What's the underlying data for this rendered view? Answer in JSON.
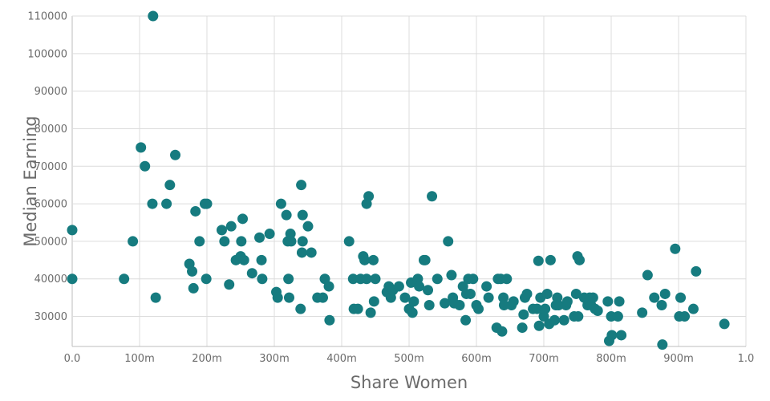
{
  "chart_data": {
    "type": "scatter",
    "xlabel": "Share Women",
    "ylabel": "Median Earning",
    "xlim": [
      0,
      1
    ],
    "ylim": [
      22000,
      110000
    ],
    "x_ticks": [
      0,
      0.1,
      0.2,
      0.3,
      0.4,
      0.5,
      0.6,
      0.7,
      0.8,
      0.9,
      1.0
    ],
    "x_tick_labels": [
      "0.0",
      "100m",
      "200m",
      "300m",
      "400m",
      "500m",
      "600m",
      "700m",
      "800m",
      "900m",
      "1.0"
    ],
    "y_ticks": [
      30000,
      40000,
      50000,
      60000,
      70000,
      80000,
      90000,
      100000,
      110000
    ],
    "y_tick_labels": [
      "30000",
      "40000",
      "50000",
      "60000",
      "70000",
      "80000",
      "90000",
      "100000",
      "110000"
    ],
    "grid": true,
    "color": "#167b7f",
    "points": [
      [
        0.12,
        110000
      ],
      [
        0.102,
        75000
      ],
      [
        0.108,
        70000
      ],
      [
        0.153,
        73000
      ],
      [
        0.145,
        65000
      ],
      [
        0.119,
        60000
      ],
      [
        0.14,
        60000
      ],
      [
        0.183,
        58000
      ],
      [
        0.197,
        60000
      ],
      [
        0.2,
        60000
      ],
      [
        0.0,
        53000
      ],
      [
        0.0,
        40000
      ],
      [
        0.077,
        40000
      ],
      [
        0.09,
        50000
      ],
      [
        0.124,
        35000
      ],
      [
        0.174,
        44000
      ],
      [
        0.178,
        42000
      ],
      [
        0.18,
        37500
      ],
      [
        0.189,
        50000
      ],
      [
        0.199,
        40000
      ],
      [
        0.222,
        53000
      ],
      [
        0.226,
        50000
      ],
      [
        0.233,
        38500
      ],
      [
        0.236,
        54000
      ],
      [
        0.243,
        45000
      ],
      [
        0.25,
        46000
      ],
      [
        0.251,
        50000
      ],
      [
        0.253,
        56000
      ],
      [
        0.255,
        45000
      ],
      [
        0.267,
        41500
      ],
      [
        0.278,
        51000
      ],
      [
        0.281,
        45000
      ],
      [
        0.282,
        40000
      ],
      [
        0.293,
        52000
      ],
      [
        0.303,
        36500
      ],
      [
        0.305,
        35000
      ],
      [
        0.31,
        60000
      ],
      [
        0.318,
        57000
      ],
      [
        0.32,
        50000
      ],
      [
        0.321,
        40000
      ],
      [
        0.322,
        35000
      ],
      [
        0.324,
        52000
      ],
      [
        0.325,
        50000
      ],
      [
        0.339,
        32000
      ],
      [
        0.34,
        65000
      ],
      [
        0.341,
        47000
      ],
      [
        0.342,
        57000
      ],
      [
        0.342,
        50000
      ],
      [
        0.35,
        54000
      ],
      [
        0.355,
        47000
      ],
      [
        0.364,
        35000
      ],
      [
        0.372,
        35000
      ],
      [
        0.375,
        40000
      ],
      [
        0.381,
        38000
      ],
      [
        0.382,
        29000
      ],
      [
        0.411,
        50000
      ],
      [
        0.417,
        40000
      ],
      [
        0.418,
        32000
      ],
      [
        0.424,
        32000
      ],
      [
        0.428,
        40000
      ],
      [
        0.432,
        46000
      ],
      [
        0.434,
        45000
      ],
      [
        0.437,
        40000
      ],
      [
        0.437,
        60000
      ],
      [
        0.44,
        62000
      ],
      [
        0.443,
        31000
      ],
      [
        0.447,
        45000
      ],
      [
        0.448,
        34000
      ],
      [
        0.45,
        40000
      ],
      [
        0.467,
        36500
      ],
      [
        0.47,
        38000
      ],
      [
        0.473,
        35000
      ],
      [
        0.476,
        37000
      ],
      [
        0.485,
        38000
      ],
      [
        0.494,
        35000
      ],
      [
        0.5,
        32000
      ],
      [
        0.503,
        39000
      ],
      [
        0.505,
        31000
      ],
      [
        0.507,
        34000
      ],
      [
        0.513,
        40000
      ],
      [
        0.515,
        38000
      ],
      [
        0.522,
        45000
      ],
      [
        0.524,
        45000
      ],
      [
        0.528,
        37000
      ],
      [
        0.53,
        33000
      ],
      [
        0.534,
        62000
      ],
      [
        0.542,
        40000
      ],
      [
        0.553,
        33500
      ],
      [
        0.558,
        50000
      ],
      [
        0.563,
        41000
      ],
      [
        0.565,
        35000
      ],
      [
        0.567,
        33500
      ],
      [
        0.575,
        33000
      ],
      [
        0.58,
        38000
      ],
      [
        0.584,
        29000
      ],
      [
        0.585,
        36000
      ],
      [
        0.588,
        40000
      ],
      [
        0.591,
        36000
      ],
      [
        0.595,
        40000
      ],
      [
        0.6,
        33000
      ],
      [
        0.603,
        32000
      ],
      [
        0.615,
        38000
      ],
      [
        0.618,
        35000
      ],
      [
        0.63,
        27000
      ],
      [
        0.632,
        40000
      ],
      [
        0.636,
        40000
      ],
      [
        0.638,
        26000
      ],
      [
        0.64,
        35000
      ],
      [
        0.641,
        33000
      ],
      [
        0.645,
        40000
      ],
      [
        0.652,
        33000
      ],
      [
        0.655,
        34000
      ],
      [
        0.668,
        27000
      ],
      [
        0.67,
        30500
      ],
      [
        0.672,
        35000
      ],
      [
        0.675,
        36000
      ],
      [
        0.684,
        32000
      ],
      [
        0.69,
        32000
      ],
      [
        0.692,
        44800
      ],
      [
        0.693,
        27500
      ],
      [
        0.695,
        35000
      ],
      [
        0.7,
        30000
      ],
      [
        0.702,
        32000
      ],
      [
        0.705,
        36000
      ],
      [
        0.708,
        28000
      ],
      [
        0.71,
        45000
      ],
      [
        0.716,
        29000
      ],
      [
        0.718,
        33000
      ],
      [
        0.72,
        35000
      ],
      [
        0.722,
        33000
      ],
      [
        0.73,
        29000
      ],
      [
        0.733,
        33000
      ],
      [
        0.735,
        34000
      ],
      [
        0.745,
        30000
      ],
      [
        0.748,
        36000
      ],
      [
        0.75,
        46000
      ],
      [
        0.751,
        30000
      ],
      [
        0.753,
        45000
      ],
      [
        0.76,
        35000
      ],
      [
        0.765,
        33000
      ],
      [
        0.768,
        35000
      ],
      [
        0.77,
        33000
      ],
      [
        0.773,
        35000
      ],
      [
        0.776,
        32000
      ],
      [
        0.78,
        31500
      ],
      [
        0.795,
        34000
      ],
      [
        0.797,
        23500
      ],
      [
        0.8,
        30000
      ],
      [
        0.801,
        25000
      ],
      [
        0.81,
        30000
      ],
      [
        0.812,
        34000
      ],
      [
        0.815,
        25000
      ],
      [
        0.846,
        31000
      ],
      [
        0.854,
        41000
      ],
      [
        0.864,
        35000
      ],
      [
        0.875,
        33000
      ],
      [
        0.876,
        22500
      ],
      [
        0.88,
        36000
      ],
      [
        0.895,
        48000
      ],
      [
        0.901,
        30000
      ],
      [
        0.903,
        35000
      ],
      [
        0.909,
        30000
      ],
      [
        0.922,
        32000
      ],
      [
        0.926,
        42000
      ],
      [
        0.968,
        28000
      ]
    ]
  }
}
